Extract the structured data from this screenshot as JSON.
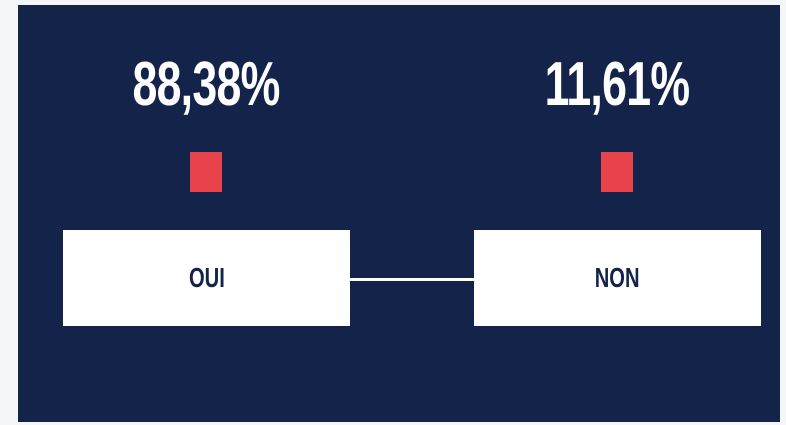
{
  "results": [
    {
      "percent": "88,38%",
      "label": "OUI"
    },
    {
      "percent": "11,61%",
      "label": "NON"
    }
  ]
}
